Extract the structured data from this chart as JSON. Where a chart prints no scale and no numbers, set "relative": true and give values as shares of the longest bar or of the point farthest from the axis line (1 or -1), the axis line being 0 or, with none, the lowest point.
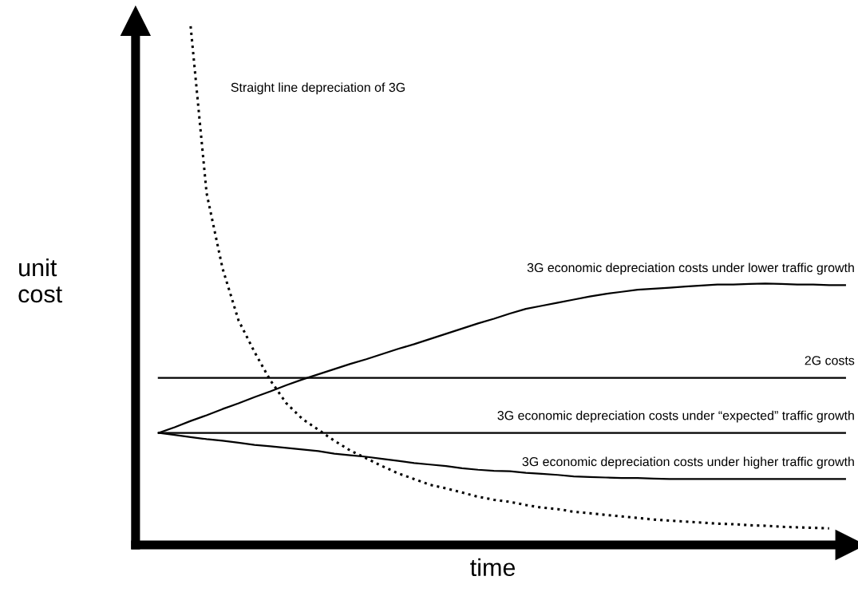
{
  "chart_data": {
    "type": "line",
    "relative": true,
    "xlabel": "time",
    "ylabel": "unit\ncost",
    "categories": [
      null,
      null,
      null,
      null,
      null,
      null,
      null,
      null,
      null,
      null,
      null,
      null,
      null,
      null,
      null,
      null,
      null,
      null,
      null,
      null,
      null,
      null,
      null,
      null,
      null,
      null,
      null,
      null,
      null,
      null,
      null,
      null,
      null,
      null,
      null,
      null,
      null,
      null,
      null,
      null,
      null,
      null,
      null,
      null
    ],
    "series": [
      {
        "name": "Straight line depreciation of 3G",
        "color": "#000000",
        "line_style": "dotted",
        "values": [
          null,
          null,
          1.0,
          0.678,
          0.533,
          0.433,
          0.372,
          0.317,
          0.273,
          0.243,
          0.222,
          0.201,
          0.182,
          0.167,
          0.152,
          0.138,
          0.127,
          0.116,
          0.109,
          0.101,
          0.093,
          0.087,
          0.083,
          0.077,
          0.072,
          0.069,
          0.064,
          0.061,
          0.058,
          0.055,
          0.052,
          0.049,
          0.047,
          0.045,
          0.043,
          0.041,
          0.04,
          0.038,
          0.037,
          0.035,
          0.034,
          0.033,
          0.032,
          null
        ]
      },
      {
        "name": "3G economic depreciation costs under lower traffic growth",
        "color": "#000000",
        "values": [
          0.216,
          0.227,
          0.239,
          0.25,
          0.262,
          0.273,
          0.285,
          0.296,
          0.308,
          0.319,
          0.329,
          0.339,
          0.349,
          0.358,
          0.368,
          0.378,
          0.387,
          0.397,
          0.407,
          0.417,
          0.427,
          0.436,
          0.446,
          0.455,
          0.461,
          0.467,
          0.473,
          0.479,
          0.484,
          0.488,
          0.492,
          0.494,
          0.496,
          0.498,
          0.5,
          0.502,
          0.502,
          0.503,
          0.504,
          0.503,
          0.502,
          0.502,
          0.501,
          0.501
        ]
      },
      {
        "name": "2G costs",
        "color": "#000000",
        "values": [
          0.322,
          0.322,
          0.322,
          0.322,
          0.322,
          0.322,
          0.322,
          0.322,
          0.322,
          0.322,
          0.322,
          0.322,
          0.322,
          0.322,
          0.322,
          0.322,
          0.322,
          0.322,
          0.322,
          0.322,
          0.322,
          0.322,
          0.322,
          0.322,
          0.322,
          0.322,
          0.322,
          0.322,
          0.322,
          0.322,
          0.322,
          0.322,
          0.322,
          0.322,
          0.322,
          0.322,
          0.322,
          0.322,
          0.322,
          0.322,
          0.322,
          0.322,
          0.322,
          0.322
        ]
      },
      {
        "name": "3G economic depreciation costs under “expected” traffic growth",
        "color": "#000000",
        "values": [
          0.216,
          0.216,
          0.216,
          0.216,
          0.216,
          0.216,
          0.216,
          0.216,
          0.216,
          0.216,
          0.216,
          0.216,
          0.216,
          0.216,
          0.216,
          0.216,
          0.216,
          0.216,
          0.216,
          0.216,
          0.216,
          0.216,
          0.216,
          0.216,
          0.216,
          0.216,
          0.216,
          0.216,
          0.216,
          0.216,
          0.216,
          0.216,
          0.216,
          0.216,
          0.216,
          0.216,
          0.216,
          0.216,
          0.216,
          0.216,
          0.216,
          0.216,
          0.216,
          0.216
        ]
      },
      {
        "name": "3G economic depreciation costs under higher traffic growth",
        "color": "#000000",
        "values": [
          0.216,
          0.212,
          0.208,
          0.204,
          0.201,
          0.197,
          0.193,
          0.19,
          0.187,
          0.184,
          0.181,
          0.176,
          0.173,
          0.17,
          0.166,
          0.162,
          0.158,
          0.155,
          0.152,
          0.148,
          0.145,
          0.143,
          0.142,
          0.139,
          0.137,
          0.135,
          0.132,
          0.131,
          0.13,
          0.129,
          0.129,
          0.128,
          0.127,
          0.127,
          0.127,
          0.127,
          0.127,
          0.127,
          0.127,
          0.127,
          0.127,
          0.127,
          0.127,
          0.127
        ]
      }
    ]
  }
}
